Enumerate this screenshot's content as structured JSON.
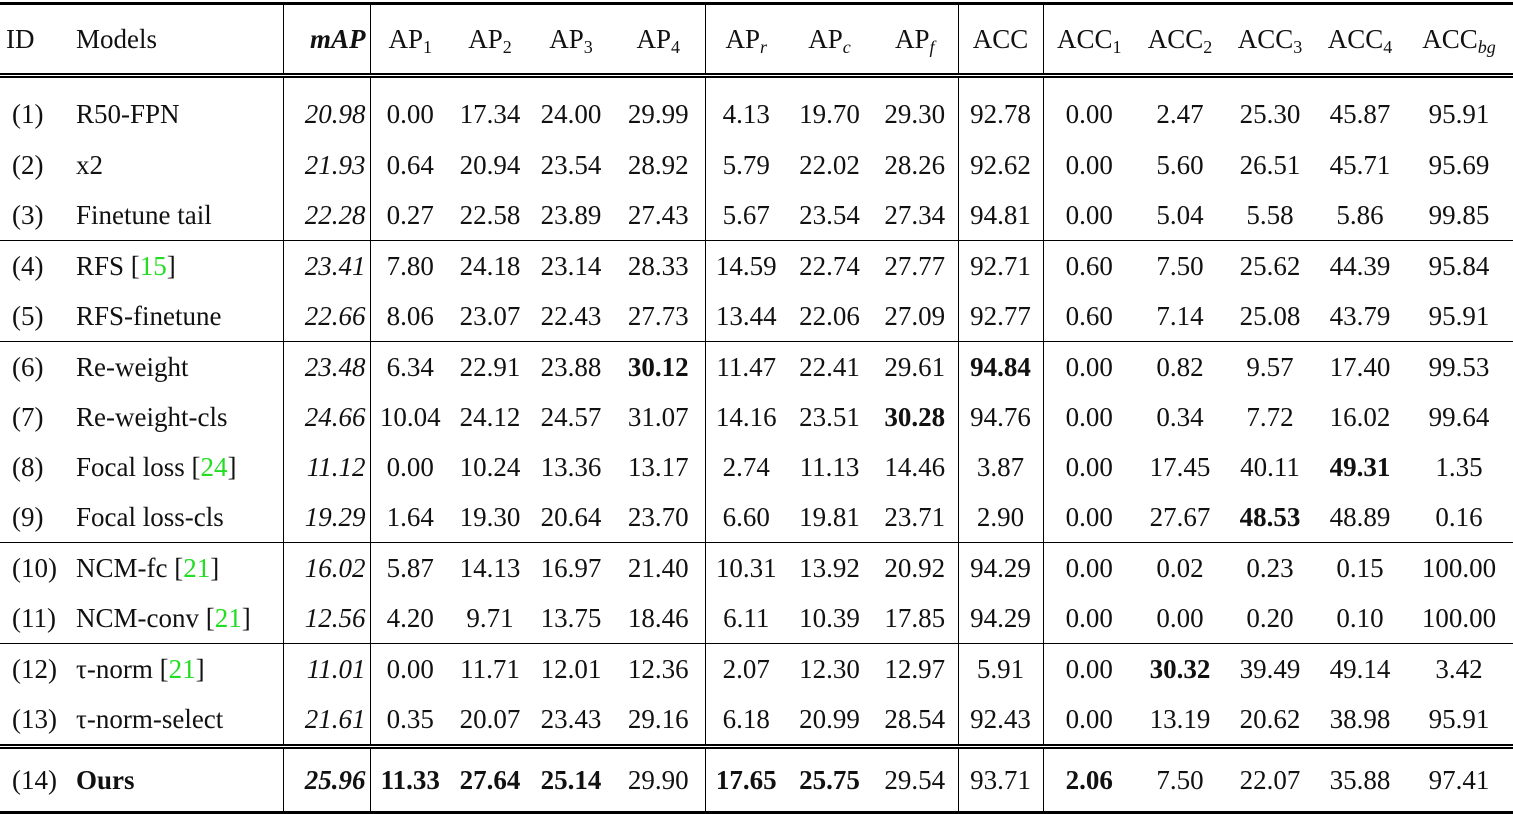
{
  "header": {
    "id": "ID",
    "model": "Models",
    "columns": [
      {
        "key": "mAP",
        "base": "mAP",
        "sub": ""
      },
      {
        "key": "AP1",
        "base": "AP",
        "sub": "1"
      },
      {
        "key": "AP2",
        "base": "AP",
        "sub": "2"
      },
      {
        "key": "AP3",
        "base": "AP",
        "sub": "3"
      },
      {
        "key": "AP4",
        "base": "AP",
        "sub": "4"
      },
      {
        "key": "APr",
        "base": "AP",
        "sub": "r"
      },
      {
        "key": "APc",
        "base": "AP",
        "sub": "c"
      },
      {
        "key": "APf",
        "base": "AP",
        "sub": "f"
      },
      {
        "key": "ACC",
        "base": "ACC",
        "sub": ""
      },
      {
        "key": "ACC1",
        "base": "ACC",
        "sub": "1"
      },
      {
        "key": "ACC2",
        "base": "ACC",
        "sub": "2"
      },
      {
        "key": "ACC3",
        "base": "ACC",
        "sub": "3"
      },
      {
        "key": "ACC4",
        "base": "ACC",
        "sub": "4"
      },
      {
        "key": "ACCbg",
        "base": "ACC",
        "sub": "bg"
      }
    ]
  },
  "groups": [
    [
      {
        "id": "(1)",
        "model": "R50-FPN",
        "ref": "",
        "values": [
          "20.98",
          "0.00",
          "17.34",
          "24.00",
          "29.99",
          "4.13",
          "19.70",
          "29.30",
          "92.78",
          "0.00",
          "2.47",
          "25.30",
          "45.87",
          "95.91"
        ],
        "bold": []
      },
      {
        "id": "(2)",
        "model": "x2",
        "ref": "",
        "values": [
          "21.93",
          "0.64",
          "20.94",
          "23.54",
          "28.92",
          "5.79",
          "22.02",
          "28.26",
          "92.62",
          "0.00",
          "5.60",
          "26.51",
          "45.71",
          "95.69"
        ],
        "bold": []
      },
      {
        "id": "(3)",
        "model": "Finetune tail",
        "ref": "",
        "values": [
          "22.28",
          "0.27",
          "22.58",
          "23.89",
          "27.43",
          "5.67",
          "23.54",
          "27.34",
          "94.81",
          "0.00",
          "5.04",
          "5.58",
          "5.86",
          "99.85"
        ],
        "bold": []
      }
    ],
    [
      {
        "id": "(4)",
        "model": "RFS",
        "ref": "15",
        "values": [
          "23.41",
          "7.80",
          "24.18",
          "23.14",
          "28.33",
          "14.59",
          "22.74",
          "27.77",
          "92.71",
          "0.60",
          "7.50",
          "25.62",
          "44.39",
          "95.84"
        ],
        "bold": []
      },
      {
        "id": "(5)",
        "model": "RFS-finetune",
        "ref": "",
        "values": [
          "22.66",
          "8.06",
          "23.07",
          "22.43",
          "27.73",
          "13.44",
          "22.06",
          "27.09",
          "92.77",
          "0.60",
          "7.14",
          "25.08",
          "43.79",
          "95.91"
        ],
        "bold": []
      }
    ],
    [
      {
        "id": "(6)",
        "model": "Re-weight",
        "ref": "",
        "values": [
          "23.48",
          "6.34",
          "22.91",
          "23.88",
          "30.12",
          "11.47",
          "22.41",
          "29.61",
          "94.84",
          "0.00",
          "0.82",
          "9.57",
          "17.40",
          "99.53"
        ],
        "bold": [
          4,
          8
        ]
      },
      {
        "id": "(7)",
        "model": "Re-weight-cls",
        "ref": "",
        "values": [
          "24.66",
          "10.04",
          "24.12",
          "24.57",
          "31.07",
          "14.16",
          "23.51",
          "30.28",
          "94.76",
          "0.00",
          "0.34",
          "7.72",
          "16.02",
          "99.64"
        ],
        "bold": [
          7
        ]
      },
      {
        "id": "(8)",
        "model": "Focal loss",
        "ref": "24",
        "values": [
          "11.12",
          "0.00",
          "10.24",
          "13.36",
          "13.17",
          "2.74",
          "11.13",
          "14.46",
          "3.87",
          "0.00",
          "17.45",
          "40.11",
          "49.31",
          "1.35"
        ],
        "bold": [
          12
        ]
      },
      {
        "id": "(9)",
        "model": "Focal loss-cls",
        "ref": "",
        "values": [
          "19.29",
          "1.64",
          "19.30",
          "20.64",
          "23.70",
          "6.60",
          "19.81",
          "23.71",
          "2.90",
          "0.00",
          "27.67",
          "48.53",
          "48.89",
          "0.16"
        ],
        "bold": [
          11
        ]
      }
    ],
    [
      {
        "id": "(10)",
        "model": "NCM-fc",
        "ref": "21",
        "values": [
          "16.02",
          "5.87",
          "14.13",
          "16.97",
          "21.40",
          "10.31",
          "13.92",
          "20.92",
          "94.29",
          "0.00",
          "0.02",
          "0.23",
          "0.15",
          "100.00"
        ],
        "bold": []
      },
      {
        "id": "(11)",
        "model": "NCM-conv",
        "ref": "21",
        "values": [
          "12.56",
          "4.20",
          "9.71",
          "13.75",
          "18.46",
          "6.11",
          "10.39",
          "17.85",
          "94.29",
          "0.00",
          "0.00",
          "0.20",
          "0.10",
          "100.00"
        ],
        "bold": []
      }
    ],
    [
      {
        "id": "(12)",
        "model": "τ-norm",
        "ref": "21",
        "values": [
          "11.01",
          "0.00",
          "11.71",
          "12.01",
          "12.36",
          "2.07",
          "12.30",
          "12.97",
          "5.91",
          "0.00",
          "30.32",
          "39.49",
          "49.14",
          "3.42"
        ],
        "bold": [
          10
        ]
      },
      {
        "id": "(13)",
        "model": "τ-norm-select",
        "ref": "",
        "values": [
          "21.61",
          "0.35",
          "20.07",
          "23.43",
          "29.16",
          "6.18",
          "20.99",
          "28.54",
          "92.43",
          "0.00",
          "13.19",
          "20.62",
          "38.98",
          "95.91"
        ],
        "bold": []
      }
    ],
    [
      {
        "id": "(14)",
        "model": "Ours",
        "ref": "",
        "model_bold": true,
        "values": [
          "25.96",
          "11.33",
          "27.64",
          "25.14",
          "29.90",
          "17.65",
          "25.75",
          "29.54",
          "93.71",
          "2.06",
          "7.50",
          "22.07",
          "35.88",
          "97.41"
        ],
        "bold": [
          0,
          1,
          2,
          3,
          5,
          6,
          9
        ]
      }
    ]
  ],
  "colors": {
    "reference_link": "#22dd22",
    "text": "#111111"
  }
}
